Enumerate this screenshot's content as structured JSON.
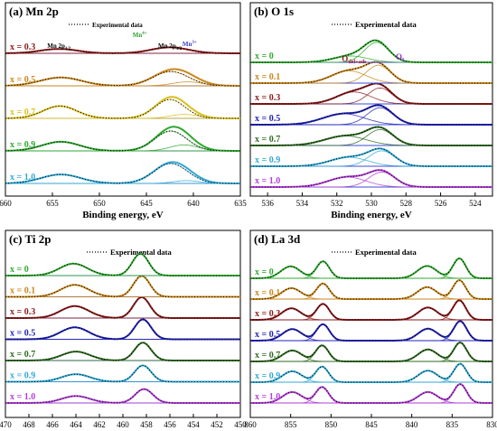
{
  "legend_label": "Experimental data",
  "chart_data": [
    {
      "type": "line",
      "id": "mn",
      "title": "(a) Mn 2p",
      "xlabel": "Binding energy, eV",
      "xlim": [
        660,
        635
      ],
      "xticks": [
        660,
        655,
        650,
        645,
        640,
        635
      ],
      "annotations": [
        {
          "text": "Mn 2p",
          "sub": "1/2",
          "x": 654.3,
          "color": "#000000"
        },
        {
          "text": "Mn 2p",
          "sub": "3/2",
          "x": 642.5,
          "color": "#000000"
        },
        {
          "text": "Mn",
          "sup": "4+",
          "x": 645.7,
          "color": "#2e9e2e"
        },
        {
          "text": "Mn",
          "sup": "3+",
          "x": 640.4,
          "color": "#3a3ac8"
        }
      ],
      "series": [
        {
          "label": "x = 1.0",
          "color": "#32a8d4",
          "peaks": [
            [
              654.1,
              0.45,
              2.1
            ],
            [
              642.4,
              1.0,
              1.8
            ],
            [
              640.7,
              0.14,
              1.4
            ]
          ],
          "exp_peaks": [
            [
              654.1,
              0.45,
              2.1
            ],
            [
              642.4,
              1.0,
              1.8
            ]
          ]
        },
        {
          "label": "x = 0.9",
          "color": "#2fa82f",
          "peaks": [
            [
              654.1,
              0.46,
              2.0
            ],
            [
              642.4,
              1.0,
              1.7
            ],
            [
              641.0,
              0.3,
              1.5
            ]
          ],
          "exp_peaks": [
            [
              654.1,
              0.46,
              2.0
            ],
            [
              642.4,
              1.0,
              1.7
            ]
          ]
        },
        {
          "label": "x = 0.7",
          "color": "#d9bf22",
          "peaks": [
            [
              654.2,
              0.62,
              1.8
            ],
            [
              642.5,
              0.95,
              1.6
            ],
            [
              641.0,
              0.2,
              1.5
            ]
          ],
          "exp_peaks": [
            [
              654.2,
              0.62,
              1.8
            ],
            [
              642.5,
              0.95,
              1.6
            ]
          ]
        },
        {
          "label": "x = 0.5",
          "color": "#c9871c",
          "peaks": [
            [
              654.1,
              0.42,
              2.2
            ],
            [
              642.4,
              0.72,
              1.9
            ],
            [
              640.6,
              0.2,
              1.6
            ]
          ],
          "exp_peaks": [
            [
              654.1,
              0.42,
              2.2
            ],
            [
              642.4,
              0.72,
              1.9
            ]
          ]
        },
        {
          "label": "x = 0.3",
          "color": "#8b1a1a",
          "peaks": [
            [
              654.3,
              0.22,
              2.0
            ],
            [
              642.5,
              0.3,
              2.0
            ]
          ],
          "exp_peaks": [
            [
              654.3,
              0.22,
              2.0
            ],
            [
              642.5,
              0.3,
              2.0
            ]
          ]
        }
      ]
    },
    {
      "type": "line",
      "id": "o",
      "title": "(b) O 1s",
      "xlabel": "Binding energy, eV",
      "xlim": [
        537,
        523
      ],
      "xticks": [
        536,
        534,
        532,
        530,
        528,
        526,
        524
      ],
      "annotations": [
        {
          "text": "O",
          "sub": "def+ads",
          "x": 531.0,
          "color": "#8b1a1a"
        },
        {
          "text": "O",
          "sub": "L",
          "x": 528.3,
          "color": "#9b30c9"
        }
      ],
      "series": [
        {
          "label": "x = 1.0",
          "color": "#b33fd6",
          "peaks": [
            [
              531.4,
              0.5,
              1.1
            ],
            [
              529.4,
              0.75,
              0.75
            ]
          ],
          "exp_peaks": [
            [
              531.4,
              0.5,
              1.1
            ],
            [
              529.4,
              0.75,
              0.75
            ]
          ]
        },
        {
          "label": "x = 0.9",
          "color": "#32a8d4",
          "peaks": [
            [
              531.3,
              0.45,
              1.1
            ],
            [
              529.4,
              0.78,
              0.75
            ]
          ],
          "exp_peaks": [
            [
              531.3,
              0.45,
              1.1
            ],
            [
              529.4,
              0.78,
              0.75
            ]
          ]
        },
        {
          "label": "x = 0.7",
          "color": "#2e6b1f",
          "peaks": [
            [
              531.5,
              0.48,
              1.2
            ],
            [
              529.5,
              0.8,
              0.75
            ]
          ],
          "exp_peaks": [
            [
              531.5,
              0.48,
              1.2
            ],
            [
              529.5,
              0.8,
              0.75
            ]
          ]
        },
        {
          "label": "x = 0.5",
          "color": "#2121b8",
          "peaks": [
            [
              531.6,
              0.55,
              1.2
            ],
            [
              529.5,
              0.85,
              0.75
            ]
          ],
          "exp_peaks": [
            [
              531.6,
              0.55,
              1.2
            ],
            [
              529.5,
              0.85,
              0.75
            ]
          ]
        },
        {
          "label": "x = 0.3",
          "color": "#8b1a1a",
          "peaks": [
            [
              531.0,
              0.6,
              1.0
            ],
            [
              529.5,
              0.8,
              0.7
            ]
          ],
          "exp_peaks": [
            [
              531.0,
              0.6,
              1.0
            ],
            [
              529.5,
              0.8,
              0.7
            ]
          ]
        },
        {
          "label": "x = 0.1",
          "color": "#c9871c",
          "peaks": [
            [
              531.3,
              0.62,
              1.0
            ],
            [
              529.6,
              0.9,
              0.7
            ]
          ],
          "exp_peaks": [
            [
              531.3,
              0.62,
              1.0
            ],
            [
              529.6,
              0.9,
              0.7
            ]
          ]
        },
        {
          "label": "x = 0",
          "color": "#2fa82f",
          "peaks": [
            [
              531.2,
              0.32,
              1.0
            ],
            [
              529.7,
              1.0,
              0.7
            ]
          ],
          "exp_peaks": [
            [
              531.2,
              0.32,
              1.0
            ],
            [
              529.7,
              1.0,
              0.7
            ]
          ]
        }
      ]
    },
    {
      "type": "line",
      "id": "ti",
      "title": "(c) Ti 2p",
      "xlabel": "Binding energy, eV",
      "xlim": [
        470,
        450
      ],
      "xticks": [
        470,
        468,
        466,
        464,
        462,
        460,
        458,
        456,
        454,
        452,
        450
      ],
      "annotations": [],
      "series": [
        {
          "label": "x = 1.0",
          "color": "#b33fd6",
          "peaks": [
            [
              464.0,
              0.35,
              1.2
            ],
            [
              458.2,
              0.7,
              0.75
            ]
          ],
          "exp_peaks": [
            [
              464.0,
              0.35,
              1.2
            ],
            [
              458.2,
              0.7,
              0.75
            ]
          ]
        },
        {
          "label": "x = 0.9",
          "color": "#32a8d4",
          "peaks": [
            [
              464.0,
              0.38,
              1.2
            ],
            [
              458.3,
              0.82,
              0.7
            ]
          ],
          "exp_peaks": [
            [
              464.0,
              0.38,
              1.2
            ],
            [
              458.3,
              0.82,
              0.7
            ]
          ]
        },
        {
          "label": "x = 0.7",
          "color": "#2e6b1f",
          "peaks": [
            [
              464.0,
              0.45,
              1.2
            ],
            [
              458.3,
              0.9,
              0.7
            ]
          ],
          "exp_peaks": [
            [
              464.0,
              0.45,
              1.2
            ],
            [
              458.3,
              0.9,
              0.7
            ]
          ]
        },
        {
          "label": "x = 0.5",
          "color": "#2121b8",
          "peaks": [
            [
              464.1,
              0.6,
              1.2
            ],
            [
              458.3,
              1.0,
              0.7
            ]
          ],
          "exp_peaks": [
            [
              464.1,
              0.6,
              1.2
            ],
            [
              458.3,
              1.0,
              0.7
            ]
          ]
        },
        {
          "label": "x = 0.3",
          "color": "#8b1a1a",
          "peaks": [
            [
              464.1,
              0.6,
              1.2
            ],
            [
              458.4,
              1.05,
              0.7
            ]
          ],
          "exp_peaks": [
            [
              464.1,
              0.6,
              1.2
            ],
            [
              458.4,
              1.05,
              0.7
            ]
          ]
        },
        {
          "label": "x = 0.1",
          "color": "#c9871c",
          "peaks": [
            [
              464.1,
              0.6,
              1.2
            ],
            [
              458.4,
              1.05,
              0.7
            ]
          ],
          "exp_peaks": [
            [
              464.1,
              0.6,
              1.2
            ],
            [
              458.4,
              1.05,
              0.7
            ]
          ]
        },
        {
          "label": "x = 0",
          "color": "#2fa82f",
          "peaks": [
            [
              464.2,
              0.6,
              1.2
            ],
            [
              458.5,
              1.1,
              0.7
            ]
          ],
          "exp_peaks": [
            [
              464.2,
              0.6,
              1.2
            ],
            [
              458.5,
              1.1,
              0.7
            ]
          ]
        }
      ]
    },
    {
      "type": "line",
      "id": "la",
      "title": "(d) La 3d",
      "xlabel": "Binding energy, eV",
      "xlim": [
        860,
        830
      ],
      "xticks": [
        860,
        855,
        850,
        845,
        840,
        835,
        830
      ],
      "annotations": [],
      "series": [
        {
          "label": "x = 1.0",
          "color": "#b33fd6",
          "peaks": [
            [
              854.8,
              0.55,
              1.2
            ],
            [
              851.1,
              0.8,
              0.8
            ],
            [
              838.0,
              0.55,
              1.2
            ],
            [
              834.0,
              0.95,
              0.8
            ]
          ],
          "exp_peaks": [
            [
              854.8,
              0.55,
              1.2
            ],
            [
              851.1,
              0.8,
              0.8
            ],
            [
              838.0,
              0.55,
              1.2
            ],
            [
              834.0,
              0.95,
              0.8
            ]
          ]
        },
        {
          "label": "x = 0.9",
          "color": "#32a8d4",
          "peaks": [
            [
              854.8,
              0.55,
              1.2
            ],
            [
              851.1,
              0.78,
              0.8
            ],
            [
              838.0,
              0.58,
              1.2
            ],
            [
              834.0,
              0.92,
              0.8
            ]
          ],
          "exp_peaks": [
            [
              854.8,
              0.55,
              1.2
            ],
            [
              851.1,
              0.78,
              0.8
            ],
            [
              838.0,
              0.58,
              1.2
            ],
            [
              834.0,
              0.92,
              0.8
            ]
          ]
        },
        {
          "label": "x = 0.7",
          "color": "#2e6b1f",
          "peaks": [
            [
              854.8,
              0.55,
              1.2
            ],
            [
              851.1,
              0.8,
              0.8
            ],
            [
              838.0,
              0.6,
              1.2
            ],
            [
              834.0,
              0.95,
              0.8
            ]
          ],
          "exp_peaks": [
            [
              854.8,
              0.55,
              1.2
            ],
            [
              851.1,
              0.8,
              0.8
            ],
            [
              838.0,
              0.6,
              1.2
            ],
            [
              834.0,
              0.95,
              0.8
            ]
          ]
        },
        {
          "label": "x = 0.5",
          "color": "#2121b8",
          "peaks": [
            [
              854.8,
              0.58,
              1.2
            ],
            [
              851.0,
              0.82,
              0.8
            ],
            [
              838.0,
              0.6,
              1.2
            ],
            [
              834.0,
              0.98,
              0.8
            ]
          ],
          "exp_peaks": [
            [
              854.8,
              0.58,
              1.2
            ],
            [
              851.0,
              0.82,
              0.8
            ],
            [
              838.0,
              0.6,
              1.2
            ],
            [
              834.0,
              0.98,
              0.8
            ]
          ]
        },
        {
          "label": "x = 0.3",
          "color": "#8b1a1a",
          "peaks": [
            [
              854.9,
              0.58,
              1.2
            ],
            [
              851.0,
              0.8,
              0.8
            ],
            [
              838.0,
              0.62,
              1.2
            ],
            [
              834.1,
              0.98,
              0.8
            ]
          ],
          "exp_peaks": [
            [
              854.9,
              0.58,
              1.2
            ],
            [
              851.0,
              0.8,
              0.8
            ],
            [
              838.0,
              0.62,
              1.2
            ],
            [
              834.1,
              0.98,
              0.8
            ]
          ]
        },
        {
          "label": "x = 0.1",
          "color": "#c9871c",
          "peaks": [
            [
              854.9,
              0.55,
              1.2
            ],
            [
              851.0,
              0.78,
              0.8
            ],
            [
              838.1,
              0.6,
              1.2
            ],
            [
              834.1,
              0.95,
              0.8
            ]
          ],
          "exp_peaks": [
            [
              854.9,
              0.55,
              1.2
            ],
            [
              851.0,
              0.78,
              0.8
            ],
            [
              838.1,
              0.6,
              1.2
            ],
            [
              834.1,
              0.95,
              0.8
            ]
          ]
        },
        {
          "label": "x = 0",
          "color": "#2fa82f",
          "peaks": [
            [
              855.0,
              0.6,
              1.2
            ],
            [
              851.0,
              0.85,
              0.8
            ],
            [
              838.1,
              0.62,
              1.2
            ],
            [
              834.1,
              1.0,
              0.8
            ]
          ],
          "exp_peaks": [
            [
              855.0,
              0.6,
              1.2
            ],
            [
              851.0,
              0.85,
              0.8
            ],
            [
              838.1,
              0.62,
              1.2
            ],
            [
              834.1,
              1.0,
              0.8
            ]
          ]
        }
      ]
    }
  ]
}
